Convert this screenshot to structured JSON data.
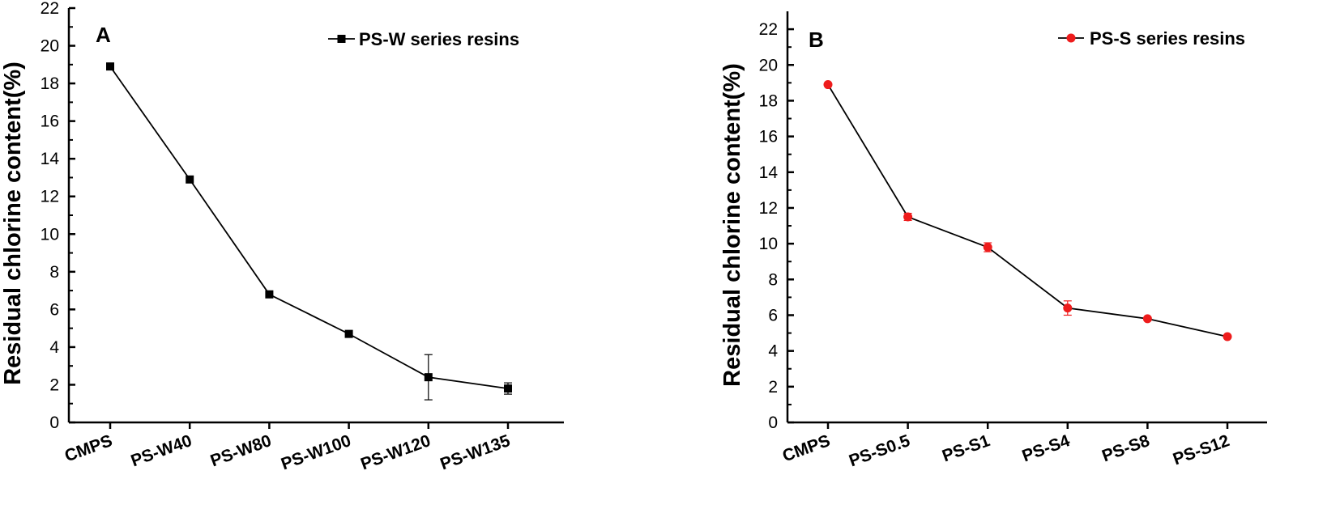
{
  "chart_data": [
    {
      "type": "line",
      "panel_label": "A",
      "title": "",
      "ylabel": "Residual chlorine content(%)",
      "xlabel": "",
      "categories": [
        "CMPS",
        "PS-W40",
        "PS-W80",
        "PS-W100",
        "PS-W120",
        "PS-W135"
      ],
      "ylim": [
        0,
        22
      ],
      "yticks": [
        "0",
        "2",
        "4",
        "6",
        "8",
        "10",
        "12",
        "14",
        "16",
        "18",
        "20",
        "22"
      ],
      "legend_position": "top-right",
      "marker": "square",
      "color": "#000000",
      "series": [
        {
          "name": "PS-W series resins",
          "values": [
            18.9,
            12.9,
            6.8,
            4.7,
            2.4,
            1.8
          ],
          "errors": [
            0.15,
            0.1,
            0.1,
            0.1,
            1.2,
            0.3
          ]
        }
      ]
    },
    {
      "type": "line",
      "panel_label": "B",
      "title": "",
      "ylabel": "Residual chlorine content(%)",
      "xlabel": "",
      "categories": [
        "CMPS",
        "PS-S0.5",
        "PS-S1",
        "PS-S4",
        "PS-S8",
        "PS-S12"
      ],
      "ylim": [
        0,
        23
      ],
      "yticks": [
        "0",
        "2",
        "4",
        "6",
        "8",
        "10",
        "12",
        "14",
        "16",
        "18",
        "20",
        "22"
      ],
      "legend_position": "top-right",
      "marker": "circle",
      "color": "#ee1c1c",
      "series": [
        {
          "name": "PS-S series resins",
          "values": [
            18.9,
            11.5,
            9.8,
            6.4,
            5.8,
            4.8
          ],
          "errors": [
            0.1,
            0.2,
            0.25,
            0.4,
            0.1,
            0.1
          ]
        }
      ]
    }
  ]
}
